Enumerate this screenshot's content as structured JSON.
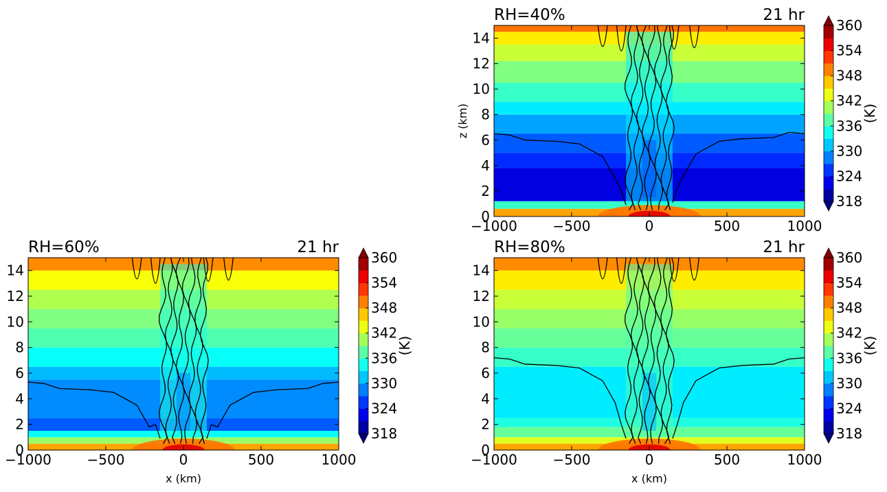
{
  "chart_data": [
    {
      "type": "heatmap",
      "title": "RH=40%",
      "time_label": "21 hr",
      "xlabel": "",
      "ylabel": "z (km)",
      "xlim": [
        -1000,
        1000
      ],
      "ylim": [
        0,
        15
      ],
      "xticks": [
        -1000,
        -500,
        0,
        500,
        1000
      ],
      "yticks": [
        0,
        2,
        4,
        6,
        8,
        10,
        12,
        14
      ],
      "colorbar": {
        "label": "(K)",
        "ticks": [
          318,
          324,
          330,
          336,
          342,
          348,
          354,
          360
        ],
        "range": [
          318,
          360
        ],
        "colormap": "jet",
        "extend": "both"
      },
      "background_profile": [
        {
          "z": [
            0,
            0.6
          ],
          "value": 348
        },
        {
          "z": [
            0.6,
            1.2
          ],
          "value": 336
        },
        {
          "z": [
            1.2,
            3.8
          ],
          "value": 322
        },
        {
          "z": [
            3.8,
            5.0
          ],
          "value": 325
        },
        {
          "z": [
            5.0,
            6.5
          ],
          "value": 327
        },
        {
          "z": [
            6.5,
            8.0
          ],
          "value": 330
        },
        {
          "z": [
            8.0,
            9.0
          ],
          "value": 333
        },
        {
          "z": [
            9.0,
            10.5
          ],
          "value": 336
        },
        {
          "z": [
            10.5,
            12.2
          ],
          "value": 339
        },
        {
          "z": [
            12.2,
            13.5
          ],
          "value": 342
        },
        {
          "z": [
            13.5,
            14.5
          ],
          "value": 345
        },
        {
          "z": [
            14.5,
            15
          ],
          "value": 350
        }
      ],
      "plume": {
        "x_halfwidth": 150,
        "value": 333
      },
      "ambient_contour_height_km": 6.5
    },
    {
      "type": "heatmap",
      "title": "RH=60%",
      "time_label": "21 hr",
      "xlabel": "x (km)",
      "ylabel": "",
      "xlim": [
        -1000,
        1000
      ],
      "ylim": [
        0,
        15
      ],
      "xticks": [
        -1000,
        -500,
        0,
        500,
        1000
      ],
      "yticks": [
        0,
        2,
        4,
        6,
        8,
        10,
        12,
        14
      ],
      "colorbar": {
        "label": "(K)",
        "ticks": [
          318,
          324,
          330,
          336,
          342,
          348,
          354,
          360
        ],
        "range": [
          318,
          360
        ],
        "colormap": "jet",
        "extend": "both"
      },
      "background_profile": [
        {
          "z": [
            0,
            0.5
          ],
          "value": 348
        },
        {
          "z": [
            0.5,
            1.0
          ],
          "value": 340
        },
        {
          "z": [
            1.0,
            1.5
          ],
          "value": 334
        },
        {
          "z": [
            1.5,
            2.5
          ],
          "value": 327
        },
        {
          "z": [
            2.5,
            5.5
          ],
          "value": 329
        },
        {
          "z": [
            5.5,
            6.5
          ],
          "value": 331
        },
        {
          "z": [
            6.5,
            8.0
          ],
          "value": 334
        },
        {
          "z": [
            8.0,
            9.5
          ],
          "value": 337
        },
        {
          "z": [
            9.5,
            11.0
          ],
          "value": 339
        },
        {
          "z": [
            11.0,
            12.5
          ],
          "value": 341
        },
        {
          "z": [
            12.5,
            14.0
          ],
          "value": 344
        },
        {
          "z": [
            14.0,
            15
          ],
          "value": 349
        }
      ],
      "plume": {
        "x_halfwidth": 150,
        "value": 335
      },
      "ambient_contour_height_km": 5.3
    },
    {
      "type": "heatmap",
      "title": "RH=80%",
      "time_label": "21 hr",
      "xlabel": "x (km)",
      "ylabel": "",
      "xlim": [
        -1000,
        1000
      ],
      "ylim": [
        0,
        15
      ],
      "xticks": [
        -1000,
        -500,
        0,
        500,
        1000
      ],
      "yticks": [
        0,
        2,
        4,
        6,
        8,
        10,
        12,
        14
      ],
      "colorbar": {
        "label": "(K)",
        "ticks": [
          318,
          324,
          330,
          336,
          342,
          348,
          354,
          360
        ],
        "range": [
          318,
          360
        ],
        "colormap": "jet",
        "extend": "both"
      },
      "background_profile": [
        {
          "z": [
            0,
            0.5
          ],
          "value": 348
        },
        {
          "z": [
            0.5,
            1.0
          ],
          "value": 343
        },
        {
          "z": [
            1.0,
            1.8
          ],
          "value": 338
        },
        {
          "z": [
            1.8,
            2.5
          ],
          "value": 335
        },
        {
          "z": [
            2.5,
            6.5
          ],
          "value": 333
        },
        {
          "z": [
            6.5,
            8.0
          ],
          "value": 336
        },
        {
          "z": [
            8.0,
            9.5
          ],
          "value": 338
        },
        {
          "z": [
            9.5,
            11.0
          ],
          "value": 340
        },
        {
          "z": [
            11.0,
            12.5
          ],
          "value": 342
        },
        {
          "z": [
            12.5,
            14.0
          ],
          "value": 345
        },
        {
          "z": [
            14.0,
            15
          ],
          "value": 349
        }
      ],
      "plume": {
        "x_halfwidth": 150,
        "value": 337
      },
      "ambient_contour_height_km": 7.2
    }
  ]
}
